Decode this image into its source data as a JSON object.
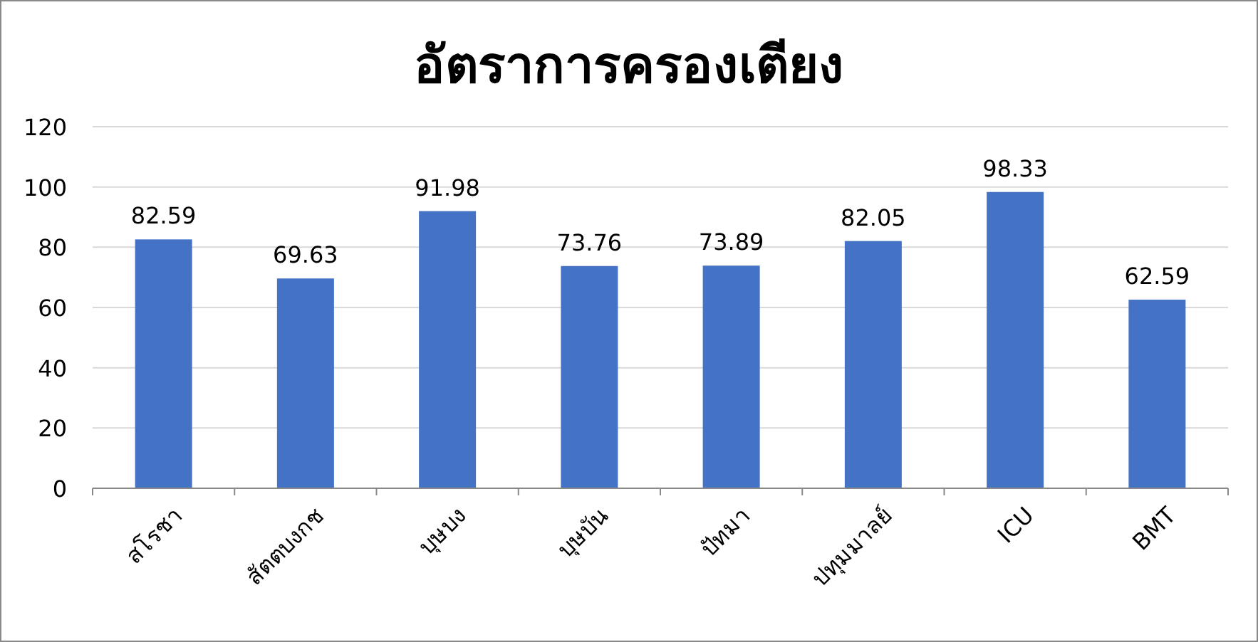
{
  "chart_data": {
    "type": "bar",
    "title": "อัตราการครองเตียง",
    "categories": [
      "สโรชา",
      "สัตตบงกช",
      "บุษบง",
      "บุษบัน",
      "ปัทมา",
      "ปทุมมาลย์",
      "ICU",
      "BMT"
    ],
    "values": [
      82.59,
      69.63,
      91.98,
      73.76,
      73.89,
      82.05,
      98.33,
      62.59
    ],
    "color": "#4472c4",
    "ylim": [
      0,
      120
    ],
    "yticks": [
      0,
      20,
      40,
      60,
      80,
      100,
      120
    ],
    "grid": "y",
    "data_labels": true
  }
}
